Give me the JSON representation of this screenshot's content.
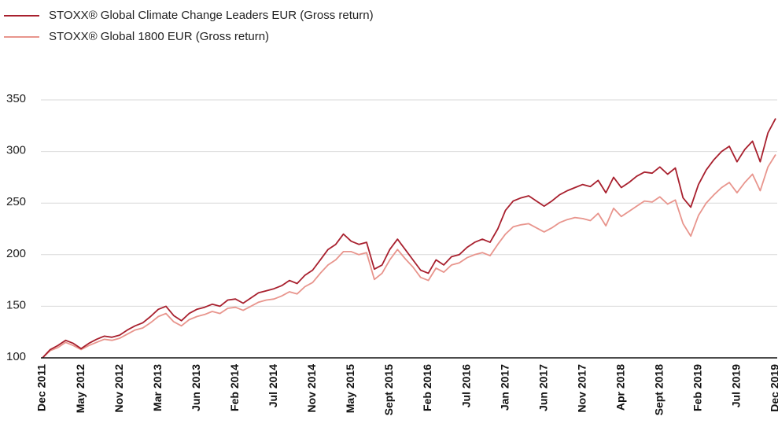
{
  "chart_data": {
    "type": "line",
    "categories": [
      "Dec 2011",
      null,
      null,
      null,
      null,
      "May 2012",
      null,
      null,
      null,
      null,
      "Nov 2012",
      null,
      null,
      null,
      null,
      "Mar 2013",
      null,
      null,
      null,
      null,
      "Jun 2013",
      null,
      null,
      null,
      null,
      "Feb 2014",
      null,
      null,
      null,
      null,
      "Jul 2014",
      null,
      null,
      null,
      null,
      "Nov 2014",
      null,
      null,
      null,
      null,
      "May 2015",
      null,
      null,
      null,
      null,
      "Sept 2015",
      null,
      null,
      null,
      null,
      "Feb 2016",
      null,
      null,
      null,
      null,
      "Jul 2016",
      null,
      null,
      null,
      null,
      "Jan 2017",
      null,
      null,
      null,
      null,
      "Jun 2017",
      null,
      null,
      null,
      null,
      "Nov 2017",
      null,
      null,
      null,
      null,
      "Apr 2018",
      null,
      null,
      null,
      null,
      "Sept 2018",
      null,
      null,
      null,
      null,
      "Feb 2019",
      null,
      null,
      null,
      null,
      "Jul 2019",
      null,
      null,
      null,
      null,
      "Dec 2019"
    ],
    "series": [
      {
        "name": "STOXX® Global Climate Change Leaders EUR (Gross return)",
        "color": "#a8202e",
        "values": [
          100,
          108,
          112,
          117,
          114,
          109,
          114,
          118,
          121,
          120,
          122,
          127,
          131,
          134,
          140,
          147,
          150,
          141,
          136,
          143,
          147,
          149,
          152,
          150,
          156,
          157,
          153,
          158,
          163,
          165,
          167,
          170,
          175,
          172,
          180,
          185,
          195,
          205,
          210,
          220,
          213,
          210,
          212,
          186,
          190,
          205,
          215,
          205,
          195,
          185,
          182,
          195,
          190,
          198,
          200,
          207,
          212,
          215,
          212,
          225,
          243,
          252,
          255,
          257,
          252,
          247,
          252,
          258,
          262,
          265,
          268,
          266,
          272,
          260,
          275,
          265,
          270,
          276,
          280,
          279,
          285,
          278,
          284,
          255,
          246,
          268,
          282,
          292,
          300,
          305,
          290,
          302,
          310,
          290,
          318,
          332
        ]
      },
      {
        "name": "STOXX® Global 1800 EUR (Gross return)",
        "color": "#e8958d",
        "values": [
          100,
          107,
          110,
          115,
          112,
          108,
          112,
          115,
          118,
          117,
          119,
          123,
          127,
          129,
          134,
          140,
          143,
          135,
          131,
          137,
          140,
          142,
          145,
          143,
          148,
          149,
          146,
          150,
          154,
          156,
          157,
          160,
          164,
          162,
          169,
          173,
          182,
          190,
          195,
          203,
          203,
          200,
          202,
          176,
          182,
          195,
          205,
          196,
          188,
          178,
          175,
          187,
          183,
          190,
          192,
          197,
          200,
          202,
          199,
          210,
          220,
          227,
          229,
          230,
          226,
          222,
          226,
          231,
          234,
          236,
          235,
          233,
          240,
          228,
          245,
          237,
          242,
          247,
          252,
          251,
          256,
          249,
          253,
          230,
          218,
          238,
          250,
          258,
          265,
          270,
          260,
          270,
          278,
          262,
          285,
          297
        ]
      }
    ],
    "ylim": [
      100,
      350
    ],
    "yticks": [
      100,
      150,
      200,
      250,
      300,
      350
    ],
    "grid": true
  }
}
